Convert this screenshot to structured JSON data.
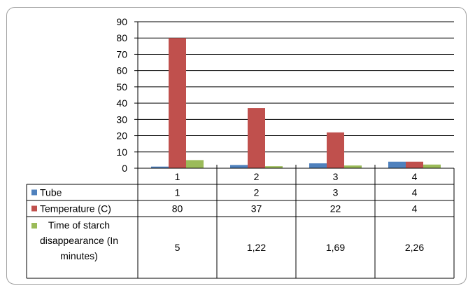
{
  "chart_data": {
    "type": "bar",
    "categories": [
      "1",
      "2",
      "3",
      "4"
    ],
    "series": [
      {
        "name": "Tube",
        "values": [
          1,
          2,
          3,
          4
        ],
        "labels": [
          "1",
          "2",
          "3",
          "4"
        ],
        "color": "#4f81bd"
      },
      {
        "name": "Temperature (C)",
        "values": [
          80,
          37,
          22,
          4
        ],
        "labels": [
          "80",
          "37",
          "22",
          "4"
        ],
        "color": "#c0504d"
      },
      {
        "name": "Time of starch disappearance (In minutes)",
        "name_lines": [
          "Time of starch",
          "disappearance (In",
          "minutes)"
        ],
        "values": [
          5,
          1.22,
          1.69,
          2.26
        ],
        "labels": [
          "5",
          "1,22",
          "1,69",
          "2,26"
        ],
        "color": "#9bbb59"
      }
    ],
    "ylim": [
      0,
      90
    ],
    "yticks": [
      "0",
      "10",
      "20",
      "30",
      "40",
      "50",
      "60",
      "70",
      "80",
      "90"
    ],
    "grid": true,
    "legend": "data-table",
    "title": "",
    "xlabel": "",
    "ylabel": ""
  }
}
